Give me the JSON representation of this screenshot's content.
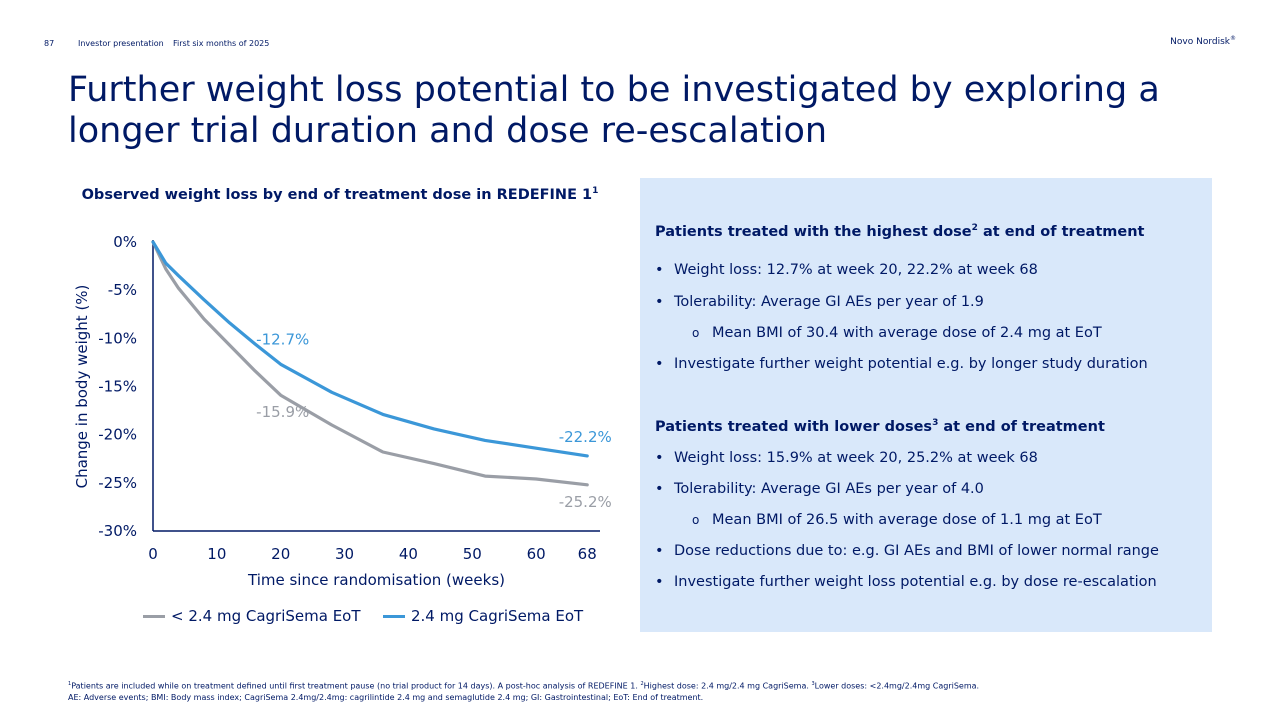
{
  "header": {
    "page_number": "87",
    "presentation": "Investor presentation",
    "period": "First six months of 2025",
    "brand": "Novo Nordisk",
    "brand_mark": "®"
  },
  "title": "Further weight loss potential to be investigated by exploring a longer trial duration and dose re-escalation",
  "chart_title": "Observed weight loss by end of treatment dose in REDEFINE 1",
  "chart_title_sup": "1",
  "chart_data": {
    "type": "line",
    "title": "Observed weight loss by end of treatment dose in REDEFINE 1",
    "xlabel": "Time since randomisation (weeks)",
    "ylabel": "Change in body weight (%)",
    "xlim": [
      0,
      70
    ],
    "ylim": [
      -30,
      0
    ],
    "xticks": [
      0,
      10,
      20,
      30,
      40,
      50,
      60,
      68
    ],
    "xtick_labels": [
      "0",
      "10",
      "20",
      "30",
      "40",
      "50",
      "60",
      "68"
    ],
    "yticks": [
      0,
      -5,
      -10,
      -15,
      -20,
      -25,
      -30
    ],
    "ytick_labels": [
      "0%",
      "-5%",
      "-10%",
      "-15%",
      "-20%",
      "-25%",
      "-30%"
    ],
    "grid": false,
    "legend_position": "bottom",
    "series": [
      {
        "name": "< 2.4 mg CagriSema EoT",
        "color": "#9a9ea6",
        "x": [
          0,
          2,
          4,
          8,
          12,
          16,
          20,
          28,
          36,
          44,
          52,
          60,
          68
        ],
        "y": [
          0,
          -2.8,
          -4.8,
          -8.0,
          -10.7,
          -13.4,
          -15.9,
          -19.0,
          -21.8,
          -23.0,
          -24.3,
          -24.6,
          -25.2
        ]
      },
      {
        "name": "2.4 mg CagriSema EoT",
        "color": "#3b97d8",
        "x": [
          0,
          2,
          4,
          8,
          12,
          16,
          20,
          28,
          36,
          44,
          52,
          60,
          68
        ],
        "y": [
          0,
          -2.2,
          -3.5,
          -6.0,
          -8.4,
          -10.6,
          -12.7,
          -15.6,
          -17.9,
          -19.4,
          -20.6,
          -21.4,
          -22.2
        ]
      }
    ],
    "annotations": [
      {
        "text": "-12.7%",
        "series": 1,
        "x": 20,
        "y": -12.7,
        "color": "#3b97d8"
      },
      {
        "text": "-15.9%",
        "series": 0,
        "x": 20,
        "y": -15.9,
        "color": "#9a9ea6"
      },
      {
        "text": "-22.2%",
        "series": 1,
        "x": 68,
        "y": -22.2,
        "color": "#3b97d8"
      },
      {
        "text": "-25.2%",
        "series": 0,
        "x": 68,
        "y": -25.2,
        "color": "#9a9ea6"
      }
    ]
  },
  "panel": {
    "section1": {
      "title_pre": "Patients treated with the highest dose",
      "title_sup": "2",
      "title_post": " at end of treatment",
      "bullets": [
        "Weight loss: 12.7% at week 20, 22.2% at week 68",
        "Tolerability: Average GI AEs per year of 1.9",
        "Mean BMI of 30.4 with average dose of 2.4 mg at EoT",
        "Investigate further weight potential e.g. by longer study duration"
      ]
    },
    "section2": {
      "title_pre": "Patients treated with lower doses",
      "title_sup": "3",
      "title_post": " at end of treatment",
      "bullets": [
        "Weight loss: 15.9% at week 20, 25.2% at week 68",
        "Tolerability: Average GI AEs per year of 4.0",
        "Mean BMI of 26.5 with average dose of 1.1 mg at EoT",
        "Dose reductions due to: e.g. GI AEs and BMI of lower normal range",
        "Investigate further weight loss potential e.g. by dose re-escalation"
      ]
    },
    "bullet_glyph": "•",
    "sub_bullet_glyph": "o"
  },
  "footnotes": {
    "line1_parts": [
      {
        "sup": "1",
        "text": "Patients are included while on treatment defined until first treatment pause (no trial product for 14 days). A post-hoc analysis of REDEFINE 1. "
      },
      {
        "sup": "2",
        "text": "Highest dose: 2.4 mg/2.4 mg CagriSema. "
      },
      {
        "sup": "3",
        "text": "Lower doses: <2.4mg/2.4mg CagriSema."
      }
    ],
    "line2": "AE: Adverse events; BMI: Body mass index; CagriSema 2.4mg/2.4mg: cagrilintide 2.4 mg and semaglutide 2.4 mg; GI: Gastrointestinal; EoT: End of treatment."
  }
}
